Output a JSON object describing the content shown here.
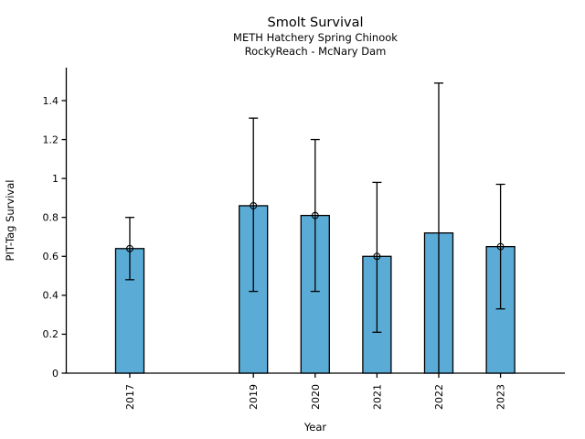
{
  "header": {
    "title": "Smolt Survival",
    "subtitle_line1": "METH Hatchery Spring Chinook",
    "subtitle_line2": "RockyReach - McNary Dam"
  },
  "chart_data": {
    "type": "bar",
    "title": "Smolt Survival",
    "subtitle1": "METH Hatchery Spring Chinook",
    "subtitle2": "RockyReach - McNary Dam",
    "xlabel": "Year",
    "ylabel": "PIT-Tag Survival",
    "categories": [
      2017,
      2019,
      2020,
      2021,
      2022,
      2023
    ],
    "values": [
      0.64,
      0.86,
      0.81,
      0.6,
      0.72,
      0.65
    ],
    "error_low": [
      0.48,
      0.42,
      0.42,
      0.21,
      0.0,
      0.33
    ],
    "error_high": [
      0.8,
      1.31,
      1.2,
      0.98,
      1.49,
      0.97
    ],
    "point_markers": [
      true,
      true,
      true,
      true,
      false,
      true
    ],
    "yticks": [
      0,
      0.2,
      0.4,
      0.6,
      0.8,
      1,
      1.2,
      1.4
    ],
    "ytick_labels": [
      "0",
      "0.2",
      "0.4",
      "0.6",
      "0.8",
      "1",
      "1.2",
      "1.4"
    ],
    "ylim": [
      0,
      1.57
    ],
    "bar_color": "#5AACD7",
    "bar_edge_color": "#000000",
    "error_color": "#000000",
    "background_color": "#ffffff",
    "grid": false,
    "legend": "none",
    "note_2018": "no bar shown for year 2018 (gap on numeric x-axis)"
  }
}
